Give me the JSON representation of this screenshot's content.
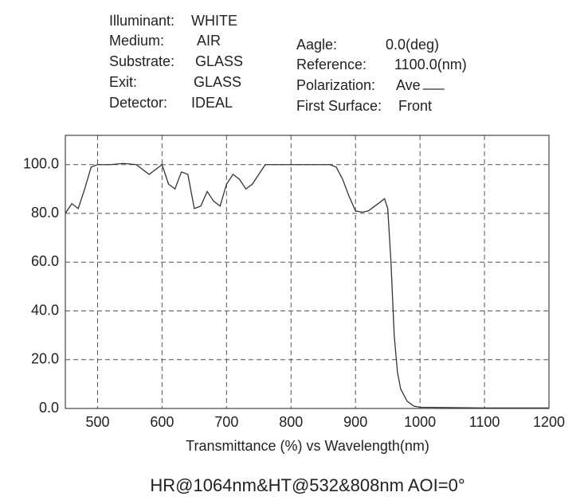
{
  "info": {
    "left": [
      {
        "label": "Illuminant:",
        "value": "WHITE"
      },
      {
        "label": "Medium:",
        "value": "AIR"
      },
      {
        "label": "Substrate:",
        "value": "GLASS"
      },
      {
        "label": "Exit:",
        "value": "GLASS"
      },
      {
        "label": "Detector:",
        "value": "IDEAL"
      }
    ],
    "right": [
      {
        "label": "Aagle:",
        "value": "0.0(deg)"
      },
      {
        "label": "Reference:",
        "value": "1100.0(nm)"
      },
      {
        "label": "Polarization:",
        "value": "Ave"
      },
      {
        "label": "First Surface:",
        "value": "Front"
      }
    ]
  },
  "chart_data": {
    "type": "line",
    "title": "HR@1064nm&HT@532&808nm AOI=0°",
    "xlabel": "Transmittance (%) vs Wavelength(nm)",
    "x": [
      450,
      460,
      470,
      480,
      490,
      500,
      520,
      540,
      560,
      580,
      590,
      600,
      610,
      620,
      630,
      640,
      650,
      660,
      670,
      680,
      690,
      700,
      710,
      720,
      730,
      740,
      760,
      800,
      860,
      870,
      880,
      890,
      900,
      910,
      920,
      930,
      940,
      945,
      950,
      955,
      960,
      965,
      970,
      980,
      990,
      1000,
      1100,
      1200
    ],
    "series": [
      {
        "color": "#333333",
        "values": [
          80,
          84,
          82,
          90,
          99,
          100,
          100,
          100.5,
          100,
          96,
          98,
          100,
          92,
          90,
          97,
          96,
          82,
          83,
          89,
          85,
          83,
          92,
          96,
          94,
          90,
          92,
          100,
          100,
          100,
          99,
          94,
          87,
          81,
          80.5,
          81,
          83,
          85,
          86,
          82,
          60,
          30,
          15,
          8,
          3,
          1,
          0.5,
          0.2,
          0.2
        ]
      }
    ],
    "xlim": [
      450,
      1200
    ],
    "ylim": [
      0,
      112
    ],
    "xticks": [
      500,
      600,
      700,
      800,
      900,
      1000,
      1100,
      1200
    ],
    "yticks": [
      {
        "value": 0,
        "label": "0.0"
      },
      {
        "value": 20,
        "label": "20.0"
      },
      {
        "value": 40,
        "label": "40.0"
      },
      {
        "value": 60,
        "label": "60.0"
      },
      {
        "value": 80,
        "label": "80.0"
      },
      {
        "value": 100,
        "label": "100.0"
      }
    ],
    "grid": true
  }
}
